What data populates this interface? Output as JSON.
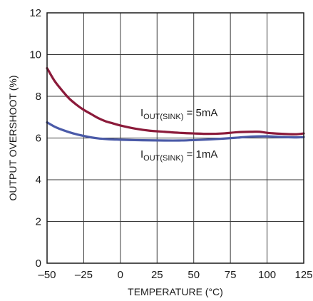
{
  "chart_data": {
    "type": "line",
    "title": "",
    "xlabel": "TEMPERATURE (°C)",
    "ylabel": "OUTPUT OVERSHOOT (%)",
    "xlim": [
      -50,
      125
    ],
    "ylim": [
      0,
      12
    ],
    "x_ticks": [
      -50,
      -25,
      0,
      25,
      50,
      75,
      100,
      125
    ],
    "y_ticks": [
      0,
      2,
      4,
      6,
      8,
      10,
      12
    ],
    "x_tick_labels": [
      "–50",
      "–25",
      "0",
      "25",
      "50",
      "75",
      "100",
      "125"
    ],
    "y_tick_labels": [
      "0",
      "2",
      "4",
      "6",
      "8",
      "10",
      "12"
    ],
    "grid": true,
    "series": [
      {
        "color": "#8b1a3a",
        "x": [
          -50,
          -45,
          -40,
          -35,
          -30,
          -25,
          -20,
          -15,
          -10,
          -5,
          0,
          10,
          20,
          30,
          40,
          50,
          60,
          70,
          80,
          90,
          95,
          100,
          110,
          120,
          125
        ],
        "y": [
          9.35,
          8.75,
          8.3,
          7.9,
          7.6,
          7.35,
          7.15,
          6.95,
          6.8,
          6.7,
          6.6,
          6.45,
          6.35,
          6.3,
          6.25,
          6.22,
          6.2,
          6.22,
          6.28,
          6.3,
          6.3,
          6.25,
          6.2,
          6.18,
          6.22
        ],
        "label": {
          "main": "I",
          "sub": "OUT(SINK)",
          "rest": " = 5mA"
        }
      },
      {
        "color": "#4a5aa8",
        "x": [
          -50,
          -45,
          -40,
          -35,
          -30,
          -25,
          -20,
          -15,
          -10,
          -5,
          0,
          10,
          20,
          30,
          40,
          50,
          60,
          70,
          80,
          90,
          100,
          110,
          120,
          125
        ],
        "y": [
          6.75,
          6.55,
          6.4,
          6.28,
          6.18,
          6.1,
          6.03,
          5.98,
          5.95,
          5.93,
          5.92,
          5.9,
          5.89,
          5.88,
          5.88,
          5.9,
          5.93,
          5.97,
          6.02,
          6.07,
          6.08,
          6.05,
          6.03,
          6.05
        ],
        "label": {
          "main": "I",
          "sub": "OUT(SINK)",
          "rest": " = 1mA"
        }
      }
    ]
  }
}
